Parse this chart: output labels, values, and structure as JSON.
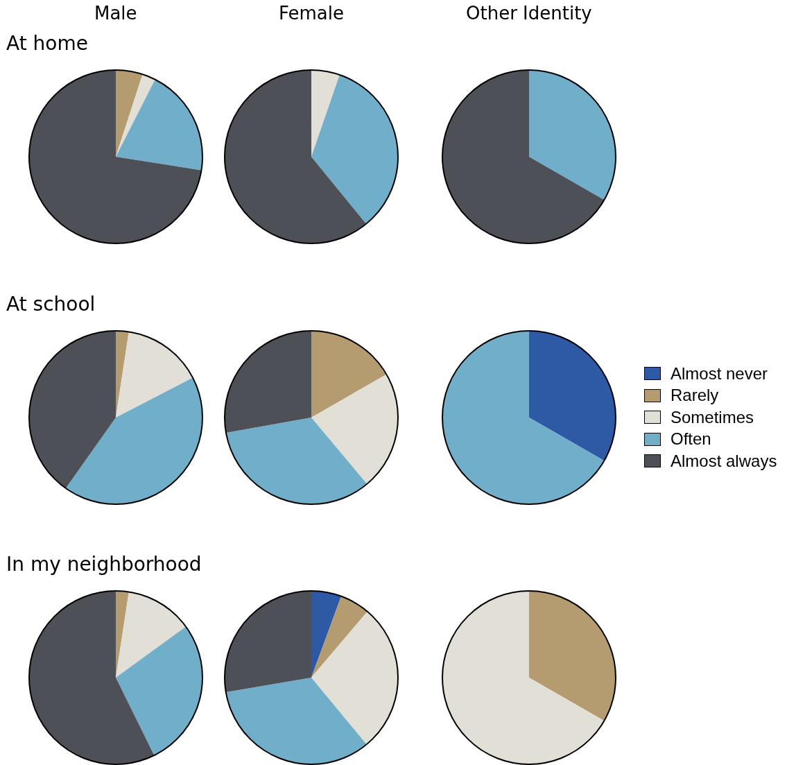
{
  "chart_data": [
    {
      "type": "pie",
      "title": "Male",
      "subtitle": "At home",
      "categories": [
        null,
        null,
        null,
        null,
        null
      ],
      "values": [
        0,
        5,
        2.5,
        20,
        72.5
      ],
      "colors": [
        "#2e5aa5",
        "#b59c70",
        "#e2dfd6",
        "#70aec9",
        "#4d5157"
      ]
    },
    {
      "type": "pie",
      "title": "Female",
      "categories": [
        null,
        null,
        null,
        null,
        null
      ],
      "values": [
        0,
        0,
        5.3,
        33.8,
        60.9
      ],
      "colors": [
        "#2e5aa5",
        "#b59c70",
        "#e2dfd6",
        "#70aec9",
        "#4d5157"
      ]
    },
    {
      "type": "pie",
      "title": "Other Identity",
      "categories": [
        null,
        null,
        null,
        null,
        null
      ],
      "values": [
        0,
        0,
        0,
        33.3,
        66.7
      ],
      "colors": [
        "#2e5aa5",
        "#b59c70",
        "#e2dfd6",
        "#70aec9",
        "#4d5157"
      ]
    },
    {
      "type": "pie",
      "subtitle": "At school",
      "categories": [
        null,
        null,
        null,
        null,
        null
      ],
      "values": [
        0,
        2.4,
        15,
        42.4,
        40.2
      ],
      "colors": [
        "#2e5aa5",
        "#b59c70",
        "#e2dfd6",
        "#70aec9",
        "#4d5157"
      ]
    },
    {
      "type": "pie",
      "categories": [
        null,
        null,
        null,
        null,
        null
      ],
      "values": [
        0,
        16.7,
        22.2,
        33.3,
        27.8
      ],
      "colors": [
        "#2e5aa5",
        "#b59c70",
        "#e2dfd6",
        "#70aec9",
        "#4d5157"
      ]
    },
    {
      "type": "pie",
      "legend": "right",
      "categories": [
        "Almost never",
        "Rarely",
        "Sometimes",
        "Often",
        "Almost always"
      ],
      "values": [
        33.3,
        0,
        0,
        66.7,
        0
      ],
      "colors": [
        "#2e5aa5",
        "#b59c70",
        "#e2dfd6",
        "#70aec9",
        "#4d5157"
      ]
    },
    {
      "type": "pie",
      "subtitle": "In my neighborhood",
      "categories": [
        null,
        null,
        null,
        null,
        null
      ],
      "values": [
        0,
        2.4,
        12.6,
        27.7,
        57.3
      ],
      "colors": [
        "#2e5aa5",
        "#b59c70",
        "#e2dfd6",
        "#70aec9",
        "#4d5157"
      ]
    },
    {
      "type": "pie",
      "categories": [
        null,
        null,
        null,
        null,
        null
      ],
      "values": [
        5.6,
        5.6,
        27.8,
        33.3,
        27.7
      ],
      "colors": [
        "#2e5aa5",
        "#b59c70",
        "#e2dfd6",
        "#70aec9",
        "#4d5157"
      ]
    },
    {
      "type": "pie",
      "categories": [
        null,
        null,
        null,
        null,
        null
      ],
      "values": [
        0,
        33.3,
        66.7,
        0,
        0
      ],
      "colors": [
        "#2e5aa5",
        "#b59c70",
        "#e2dfd6",
        "#70aec9",
        "#4d5157"
      ]
    }
  ]
}
